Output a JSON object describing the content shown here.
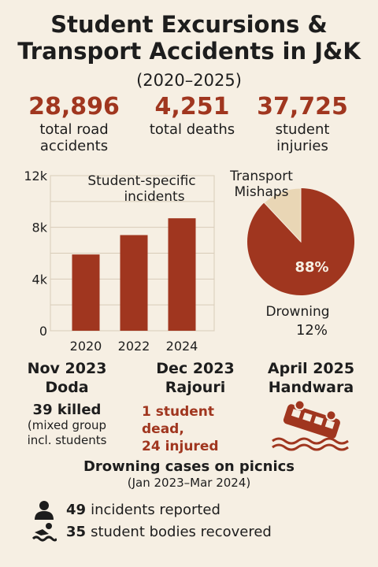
{
  "header": {
    "title_line1": "Student Excursions &",
    "title_line2": "Transport Accidents in J&K",
    "period": "(2020–2025)"
  },
  "stats": [
    {
      "value": "28,896",
      "label_line1": "total road",
      "label_line2": "accidents"
    },
    {
      "value": "4,251",
      "label_line1": "total deaths",
      "label_line2": ""
    },
    {
      "value": "37,725",
      "label_line1": "student",
      "label_line2": "injuries"
    }
  ],
  "colors": {
    "accent": "#a0361f",
    "bar": "#a0361f",
    "pie_major": "#a0361f",
    "pie_minor": "#e9d6b5",
    "background": "#f6efe3"
  },
  "chart_data": [
    {
      "type": "bar",
      "title_line1": "Student-specific",
      "title_line2": "incidents",
      "categories": [
        "2020",
        "2022",
        "2024"
      ],
      "values": [
        5900,
        7400,
        8700
      ],
      "ylim": [
        0,
        12000
      ],
      "yticks": [
        0,
        4000,
        8000,
        12000
      ],
      "ytick_labels": [
        "0",
        "4k",
        "8k",
        "12k"
      ],
      "grid": true
    },
    {
      "type": "pie",
      "slices": [
        {
          "label_line1": "Transport",
          "label_line2": "Mishaps",
          "value": 88,
          "pct_label": "88%"
        },
        {
          "label_line1": "Drowning",
          "label_line2": "",
          "value": 12,
          "pct_label": "12%"
        }
      ]
    }
  ],
  "incidents": [
    {
      "date": "Nov 2023",
      "place": "Doda",
      "killed": "39 killed",
      "note_line1": "(mixed group",
      "note_line2": "incl. students"
    },
    {
      "date": "Dec 2023",
      "place": "Rajouri",
      "line1": "1 student dead,",
      "line2": "24 injured"
    },
    {
      "date": "April 2025",
      "place": "Handwara",
      "icon": "overturned-bus-icon"
    }
  ],
  "drowning": {
    "title": "Drowning cases on picnics",
    "period": "(Jan 2023–Mar 2024)",
    "items": [
      {
        "icon": "person-icon",
        "count": "49",
        "text": "incidents reported"
      },
      {
        "icon": "swimmer-wave-icon",
        "count": "35",
        "text": "student bodies recovered"
      }
    ]
  }
}
